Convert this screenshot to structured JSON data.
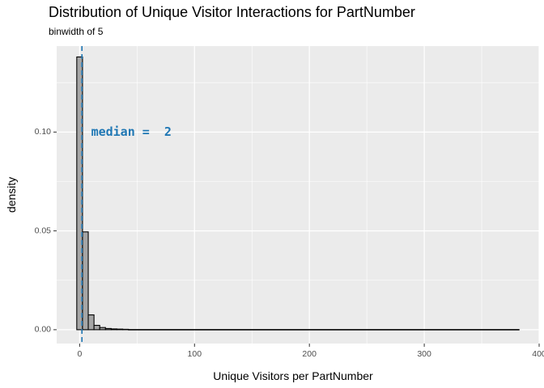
{
  "chart_data": {
    "type": "bar",
    "title": "Distribution of Unique Visitor Interactions for PartNumber",
    "subtitle": "binwidth of 5",
    "xlabel": "Unique Visitors per PartNumber",
    "ylabel": "density",
    "xlim": [
      -20,
      400
    ],
    "ylim": [
      -0.007,
      0.1435
    ],
    "x_ticks": [
      0,
      100,
      200,
      300,
      400
    ],
    "x_tick_labels": [
      "0",
      "100",
      "200",
      "300",
      "400"
    ],
    "y_ticks": [
      0.0,
      0.05,
      0.1
    ],
    "y_tick_labels": [
      "0.00",
      "0.05",
      "0.10"
    ],
    "binwidth": 5,
    "bins": [
      {
        "x0": -2.5,
        "x1": 2.5,
        "density": 0.138
      },
      {
        "x0": 2.5,
        "x1": 7.5,
        "density": 0.0495
      },
      {
        "x0": 7.5,
        "x1": 12.5,
        "density": 0.0075
      },
      {
        "x0": 12.5,
        "x1": 17.5,
        "density": 0.0022
      },
      {
        "x0": 17.5,
        "x1": 22.5,
        "density": 0.0011
      },
      {
        "x0": 22.5,
        "x1": 27.5,
        "density": 0.0006
      },
      {
        "x0": 27.5,
        "x1": 32.5,
        "density": 0.0004
      },
      {
        "x0": 32.5,
        "x1": 37.5,
        "density": 0.0003
      },
      {
        "x0": 37.5,
        "x1": 42.5,
        "density": 0.0002
      },
      {
        "x0": 42.5,
        "x1": 382.5,
        "density": 0.0001
      }
    ],
    "median": 2,
    "median_label": "median =  2",
    "median_label_pos": {
      "x": 45,
      "y": 0.1
    },
    "grid": true,
    "colors": {
      "panel": "#ebebeb",
      "grid": "#ffffff",
      "bar_fill": "#a6a6a6",
      "bar_stroke": "#000000",
      "median_line": "#1f77b4",
      "median_text": "#1f77b4"
    }
  }
}
